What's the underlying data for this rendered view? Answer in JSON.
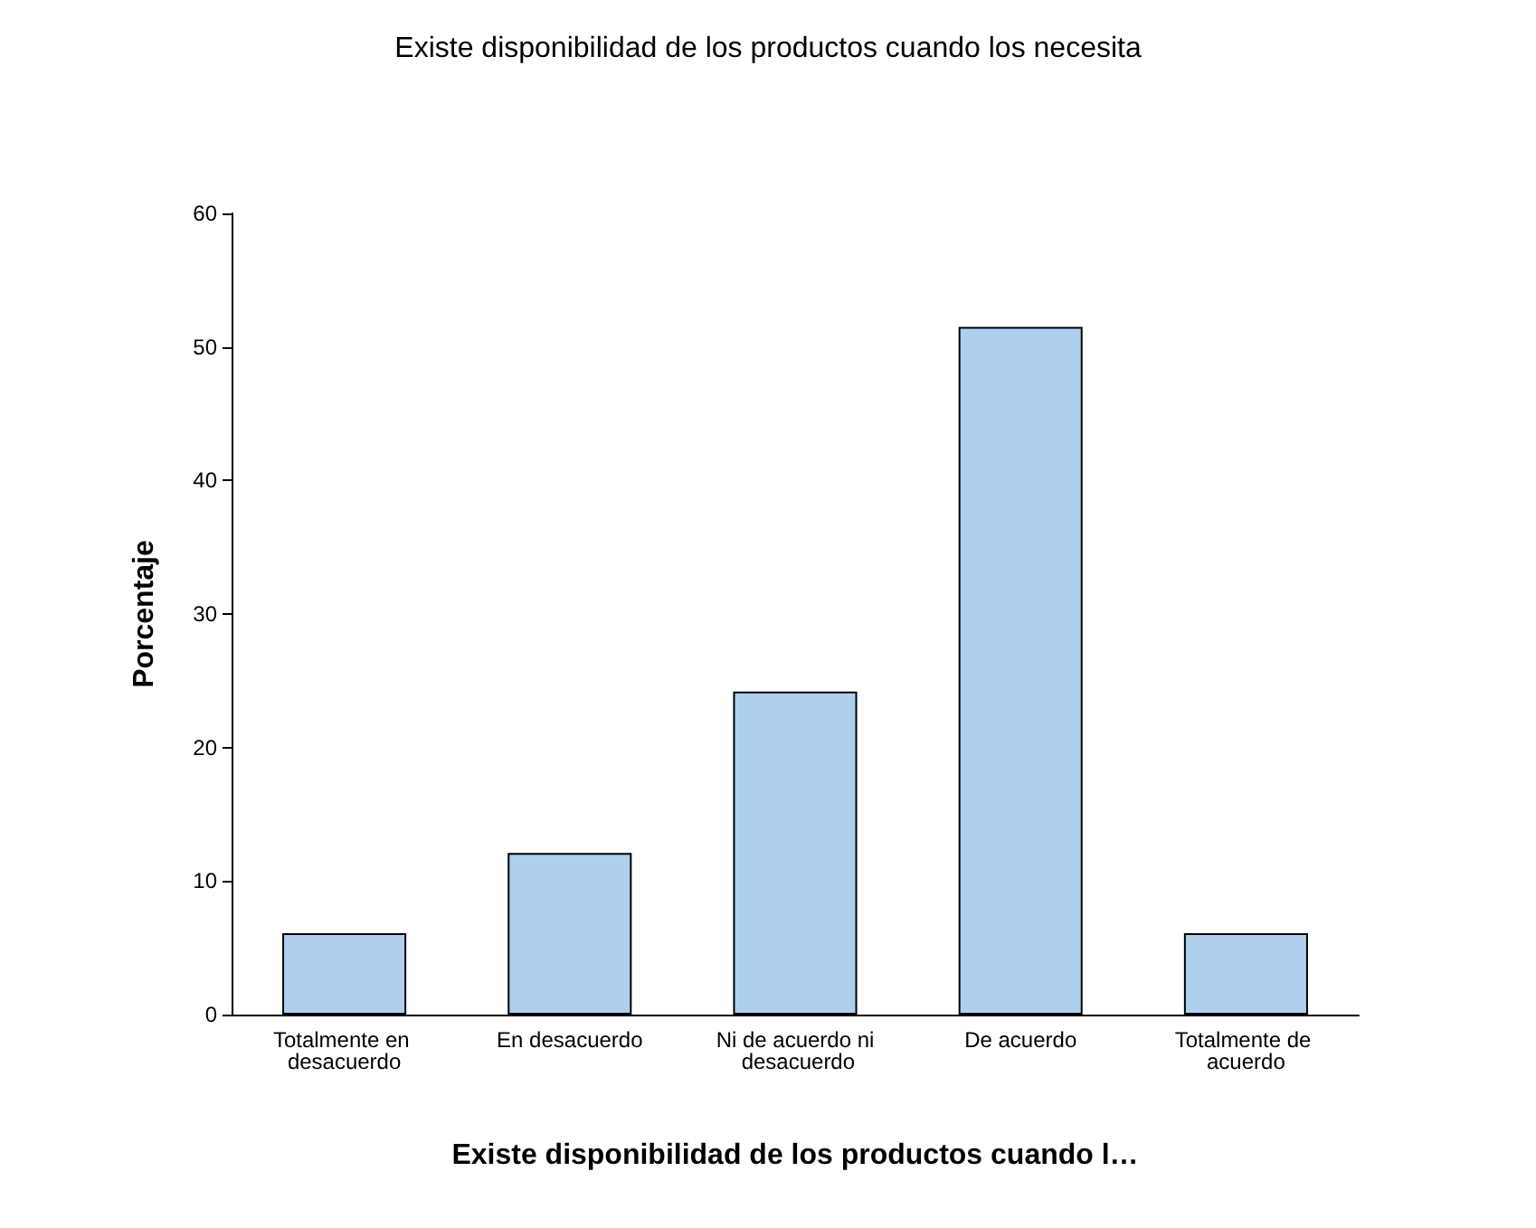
{
  "chart_data": {
    "type": "bar",
    "title": "Existe disponibilidad de los productos cuando los necesita",
    "xlabel": "Existe disponibilidad de los productos cuando l…",
    "ylabel": "Porcentaje",
    "categories": [
      "Totalmente en desacuerdo",
      "En desacuerdo",
      "Ni de acuerdo ni desacuerdo",
      "De acuerdo",
      "Totalmente de acuerdo"
    ],
    "values": [
      6.1,
      12.1,
      24.2,
      51.5,
      6.1
    ],
    "color": "#aed0ee",
    "ylim": [
      0,
      60
    ],
    "yticks": [
      0,
      10,
      20,
      30,
      40,
      50,
      60
    ],
    "grid": false
  }
}
